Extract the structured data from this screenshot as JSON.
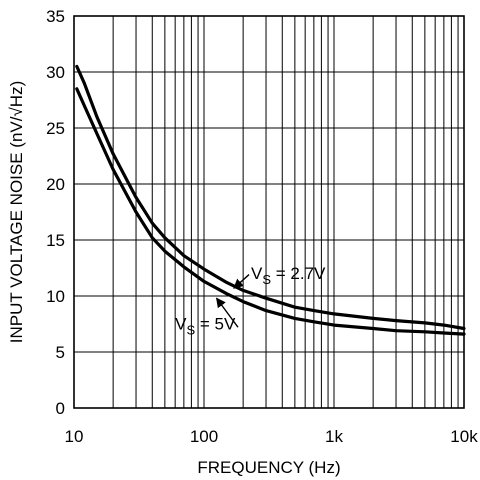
{
  "chart_data": {
    "type": "line",
    "xlabel": "FREQUENCY (Hz)",
    "ylabel": "INPUT VOLTAGE NOISE (nV/√Hz)",
    "x_scale": "log",
    "xlim": [
      10,
      10000
    ],
    "ylim": [
      0,
      35
    ],
    "grid": true,
    "x_ticks": [
      {
        "value": 10,
        "label": "10"
      },
      {
        "value": 100,
        "label": "100"
      },
      {
        "value": 1000,
        "label": "1k"
      },
      {
        "value": 10000,
        "label": "10k"
      }
    ],
    "y_ticks": [
      {
        "value": 0,
        "label": "0"
      },
      {
        "value": 5,
        "label": "5"
      },
      {
        "value": 10,
        "label": "10"
      },
      {
        "value": 15,
        "label": "15"
      },
      {
        "value": 20,
        "label": "20"
      },
      {
        "value": 25,
        "label": "25"
      },
      {
        "value": 30,
        "label": "30"
      },
      {
        "value": 35,
        "label": "35"
      }
    ],
    "series": [
      {
        "x": [
          10.5,
          12,
          15,
          20,
          30,
          40,
          50,
          70,
          100,
          150,
          200,
          300,
          500,
          700,
          1000,
          2000,
          3000,
          5000,
          7000,
          10000
        ],
        "y": [
          30.5,
          29,
          26,
          22.7,
          18.8,
          16.5,
          15.2,
          13.6,
          12.4,
          11.2,
          10.5,
          9.8,
          9.0,
          8.7,
          8.4,
          8.0,
          7.8,
          7.6,
          7.4,
          7.1
        ]
      },
      {
        "x": [
          10.5,
          12,
          15,
          20,
          30,
          40,
          50,
          70,
          100,
          150,
          200,
          300,
          500,
          700,
          1000,
          2000,
          3000,
          5000,
          7000,
          10000
        ],
        "y": [
          28.5,
          27,
          24.5,
          21.3,
          17.5,
          15.2,
          14.0,
          12.6,
          11.3,
          10.2,
          9.5,
          8.7,
          8.0,
          7.7,
          7.4,
          7.1,
          6.9,
          6.8,
          6.7,
          6.6
        ]
      }
    ],
    "annotations": [
      {
        "label": {
          "main": "V",
          "sub": "S",
          "rest": " = 2.7V"
        },
        "text": "VS = 2.7V",
        "x": 230,
        "y": 11.5,
        "arrow_to": {
          "x": 170,
          "y": 10.7
        },
        "anchor": "start"
      },
      {
        "label": {
          "main": "V",
          "sub": "S",
          "rest": " = 5V"
        },
        "text": "VS = 5V",
        "x": 60,
        "y": 7.0,
        "arrow_to": {
          "x": 125,
          "y": 9.8
        },
        "anchor": "start"
      }
    ]
  }
}
